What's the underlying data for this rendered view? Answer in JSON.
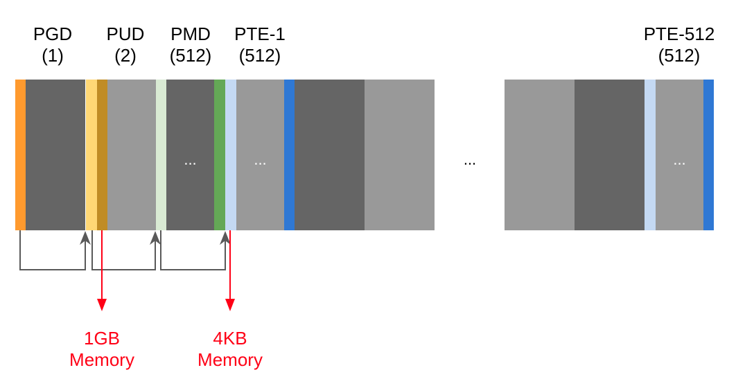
{
  "labels": {
    "pgd": {
      "name": "PGD",
      "count": "(1)"
    },
    "pud": {
      "name": "PUD",
      "count": "(2)"
    },
    "pmd": {
      "name": "PMD",
      "count": "(512)"
    },
    "pte1": {
      "name": "PTE-1",
      "count": "(512)"
    },
    "pte512": {
      "name": "PTE-512",
      "count": "(512)"
    }
  },
  "ellipsis": "...",
  "targets": {
    "gb": {
      "line1": "1GB",
      "line2": "Memory"
    },
    "kb": {
      "line1": "4KB",
      "line2": "Memory"
    }
  },
  "colors": {
    "pgd_entry": "#ff9a2e",
    "pud_entry_1": "#ffd775",
    "pud_entry_2": "#c08c25",
    "pmd_entry_1": "#d9ead3",
    "pmd_entry_2": "#64a856",
    "pte_entry_1": "#c4d9f3",
    "pte_entry_2": "#2f78d4",
    "dark_block": "#656565",
    "light_block": "#999999",
    "pointer_arrow": "#595959",
    "memory_arrow": "#ff0016"
  }
}
